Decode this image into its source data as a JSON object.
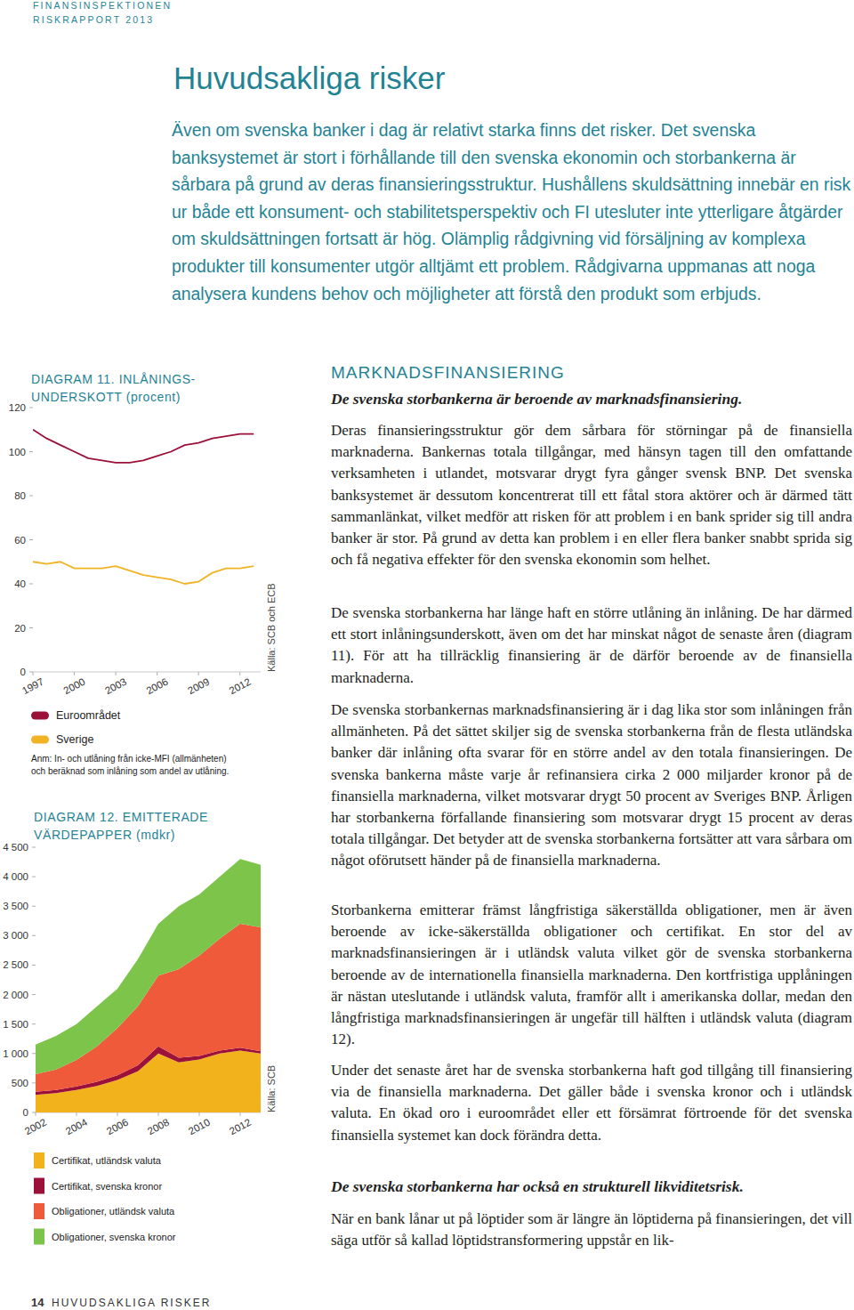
{
  "header": {
    "org": "FINANSINSPEKTIONEN",
    "report": "RISKRAPPORT 2013"
  },
  "title": "Huvudsakliga risker",
  "intro": "Även om svenska banker i dag är relativt starka finns det risker. Det svenska banksystemet är stort i förhållande till den svenska ekonomin och storbankerna är sårbara på grund av deras finansieringsstruktur. Hushållens skuldsättning innebär en risk ur både ett konsument- och stabilitetsperspektiv och FI utesluter inte ytterligare åtgärder om skuldsättningen fortsatt är hög. Olämplig rådgivning vid försäljning av komplexa produkter till konsumenter utgör alltjämt ett problem. Rådgivarna uppmanas att noga analysera kundens behov och möjligheter att förstå den produkt som erbjuds.",
  "section": {
    "heading": "MARKNADSFINANSIERING",
    "subheading": "De svenska storbankerna är beroende av marknadsfinansiering.",
    "paragraphs": [
      "Deras finansieringsstruktur gör dem sårbara för störningar på de finansiella marknaderna. Bankernas totala tillgångar, med hänsyn tagen till den omfattande verksamheten i utlandet, motsvarar drygt fyra gånger svensk BNP. Det svenska banksystemet är dessutom koncentrerat till ett fåtal stora aktörer och är därmed tätt sammanlänkat, vilket medför att risken för att problem i en bank sprider sig till andra banker är stor. På grund av detta kan problem i en eller flera banker snabbt sprida sig och få negativa effekter för den svenska ekonomin som helhet.",
      "De svenska storbankerna har länge haft en större utlåning än inlåning. De har därmed ett stort inlåningsunderskott, även om det har minskat något de senaste åren (diagram 11). För att ha tillräcklig finansiering är de därför beroende av de finansiella marknaderna.",
      "De svenska storbankernas marknadsfinansiering är i dag lika stor som inlåningen från allmänheten. På det sättet skiljer sig de svenska storbankerna från de flesta utländska banker där inlåning ofta svarar för en större andel av den totala finansieringen. De svenska bankerna måste varje år refinansiera cirka 2 000 miljarder kronor på de finansiella marknaderna, vilket motsvarar drygt 50 procent av Sveriges BNP. Årligen har storbankerna förfallande finansiering som motsvarar drygt 15 procent av deras totala tillgångar. Det betyder att de svenska storbankerna fortsätter att vara sårbara om något oförutsett händer på de finansiella marknaderna.",
      "Storbankerna emitterar främst långfristiga säkerställda obligationer, men är även beroende av icke-säkerställda obligationer och certifikat. En stor del av marknadsfinansieringen är i utländsk valuta vilket gör de svenska storbankerna beroende av de internationella finansiella marknaderna. Den kortfristiga upplåningen är nästan uteslutande i utländsk valuta, framför allt i amerikanska dollar, medan den långfristiga marknadsfinansieringen är ungefär till hälften i utländsk valuta (diagram 12).",
      "Under det senaste året har de svenska storbankerna haft god tillgång till finansiering via de finansiella marknaderna. Det gäller både i svenska kronor och i utländsk valuta. En ökad oro i euroområdet eller ett försämrat förtroende för det svenska finansiella systemet kan dock förändra detta."
    ],
    "subheading2": "De svenska storbankerna har också en strukturell likviditetsrisk.",
    "paragraph_last": "När en bank lånar ut på löptider som är längre än löptiderna på finansieringen, det vill säga utför så kallad löptidstransformering uppstår en lik-"
  },
  "footer": {
    "page": "14",
    "section": "HUVUDSAKLIGA RISKER"
  },
  "chart_data": [
    {
      "type": "line",
      "title": "DIAGRAM 11. INLÅNINGS-\nUNDERSKOTT (procent)",
      "source": "Källa: SCB och ECB",
      "note": "Anm: In- och utlåning från icke-MFI (allmänheten)\noch beräknad som inlåning som andel av utlåning.",
      "x": [
        1997,
        1998,
        1999,
        2000,
        2001,
        2002,
        2003,
        2004,
        2005,
        2006,
        2007,
        2008,
        2009,
        2010,
        2011,
        2012,
        2013
      ],
      "series": [
        {
          "name": "Euroområdet",
          "color": "#9b1139",
          "values": [
            110,
            106,
            103,
            100,
            97,
            96,
            95,
            95,
            96,
            98,
            100,
            103,
            104,
            106,
            107,
            108,
            108
          ]
        },
        {
          "name": "Sverige",
          "color": "#f0b323",
          "values": [
            50,
            49,
            50,
            47,
            47,
            47,
            48,
            46,
            44,
            43,
            42,
            40,
            41,
            45,
            47,
            47,
            48
          ]
        }
      ],
      "xlim": [
        1997,
        2013.5
      ],
      "xticks": [
        1997,
        2000,
        2003,
        2006,
        2009,
        2012
      ],
      "ylim": [
        0,
        120
      ],
      "yticks": [
        0,
        20,
        40,
        60,
        80,
        100,
        120
      ],
      "grid": false,
      "legend": "bottom"
    },
    {
      "type": "area",
      "stacked": true,
      "title": "DIAGRAM 12. EMITTERADE\nVÄRDEPAPPER (mdkr)",
      "source": "Källa: SCB",
      "x": [
        2002,
        2003,
        2004,
        2005,
        2006,
        2007,
        2008,
        2009,
        2010,
        2011,
        2012,
        2013
      ],
      "series": [
        {
          "name": "Certifikat, utländsk valuta",
          "color": "#f2b21c",
          "values": [
            300,
            330,
            380,
            450,
            550,
            700,
            1000,
            850,
            900,
            1000,
            1050,
            1000
          ]
        },
        {
          "name": "Certifikat, svenska kronor",
          "color": "#9b1139",
          "values": [
            50,
            50,
            60,
            70,
            80,
            100,
            120,
            80,
            60,
            50,
            50,
            40
          ]
        },
        {
          "name": "Obligationer, utländsk valuta",
          "color": "#ee5a3a",
          "values": [
            300,
            350,
            450,
            600,
            800,
            1000,
            1200,
            1500,
            1700,
            1900,
            2100,
            2100
          ]
        },
        {
          "name": "Obligationer, svenska kronor",
          "color": "#7dc44a",
          "values": [
            500,
            570,
            610,
            680,
            670,
            800,
            880,
            1070,
            1040,
            1050,
            1100,
            1060
          ]
        }
      ],
      "xlim": [
        2002,
        2013
      ],
      "xticks": [
        2002,
        2004,
        2006,
        2008,
        2010,
        2012
      ],
      "ylim": [
        0,
        4500
      ],
      "yticks": [
        0,
        500,
        {
          "value": 1000,
          "label": "1 000"
        },
        {
          "value": 1500,
          "label": "1 500"
        },
        {
          "value": 2000,
          "label": "2 000"
        },
        {
          "value": 2500,
          "label": "2 500"
        },
        {
          "value": 3000,
          "label": "3 000"
        },
        {
          "value": 3500,
          "label": "3 500"
        },
        {
          "value": 4000,
          "label": "4 000"
        },
        {
          "value": 4500,
          "label": "4 500"
        }
      ],
      "grid": false,
      "legend": "bottom"
    }
  ]
}
